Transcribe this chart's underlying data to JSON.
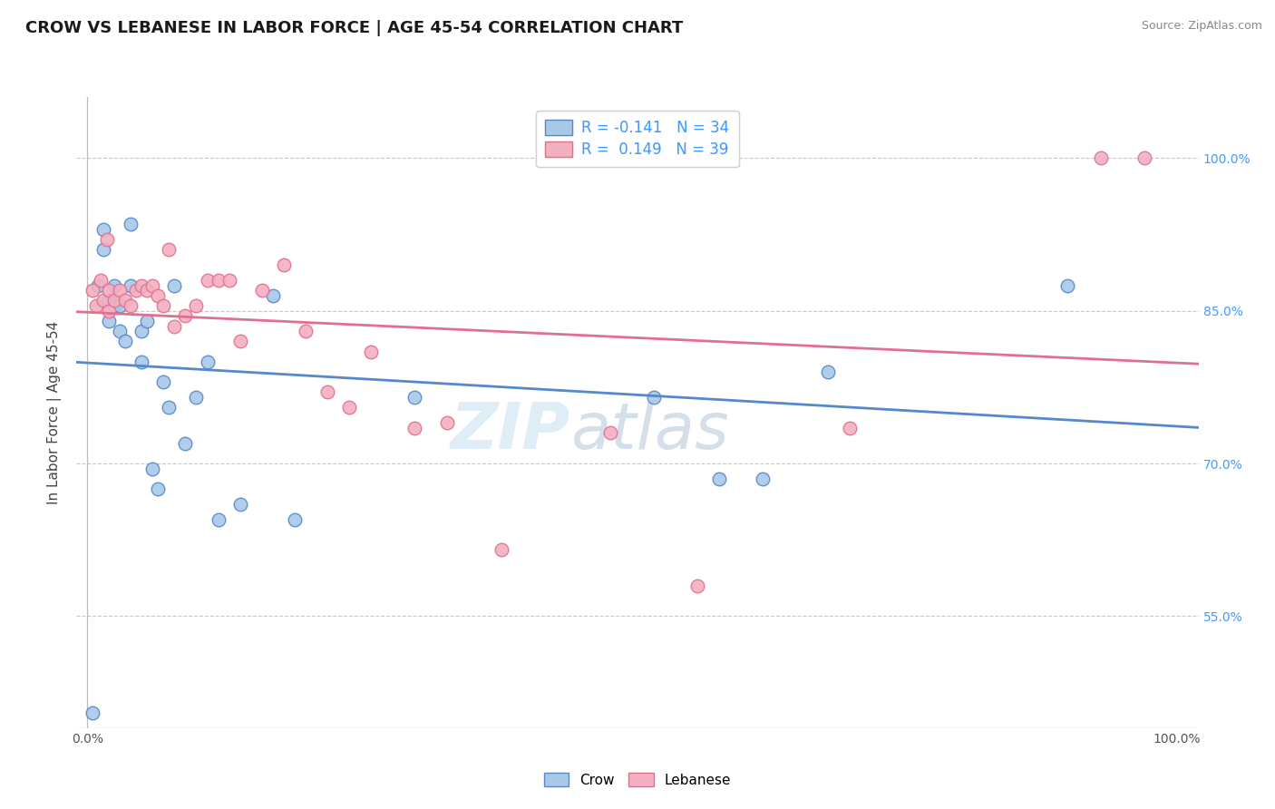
{
  "title": "CROW VS LEBANESE IN LABOR FORCE | AGE 45-54 CORRELATION CHART",
  "source": "Source: ZipAtlas.com",
  "ylabel": "In Labor Force | Age 45-54",
  "xlim": [
    -0.01,
    1.02
  ],
  "ylim": [
    0.44,
    1.06
  ],
  "xticks": [
    0.0,
    0.25,
    0.5,
    0.75,
    1.0
  ],
  "xtick_labels": [
    "0.0%",
    "",
    "",
    "",
    "100.0%"
  ],
  "ytick_labels": [
    "55.0%",
    "70.0%",
    "85.0%",
    "100.0%"
  ],
  "yticks": [
    0.55,
    0.7,
    0.85,
    1.0
  ],
  "crow_color": "#a8c8e8",
  "lebanese_color": "#f4afc0",
  "crow_line_color": "#5588cc",
  "lebanese_line_color": "#e07090",
  "legend_R_crow": "R = -0.141   N = 34",
  "legend_R_lebanese": "R =  0.149   N = 39",
  "crow_x": [
    0.005,
    0.01,
    0.015,
    0.015,
    0.02,
    0.02,
    0.025,
    0.025,
    0.03,
    0.03,
    0.035,
    0.04,
    0.04,
    0.05,
    0.05,
    0.055,
    0.06,
    0.065,
    0.07,
    0.075,
    0.08,
    0.09,
    0.1,
    0.11,
    0.12,
    0.14,
    0.17,
    0.19,
    0.3,
    0.52,
    0.58,
    0.62,
    0.68,
    0.9
  ],
  "crow_y": [
    0.455,
    0.875,
    0.91,
    0.93,
    0.86,
    0.84,
    0.855,
    0.875,
    0.83,
    0.855,
    0.82,
    0.875,
    0.935,
    0.8,
    0.83,
    0.84,
    0.695,
    0.675,
    0.78,
    0.755,
    0.875,
    0.72,
    0.765,
    0.8,
    0.645,
    0.66,
    0.865,
    0.645,
    0.765,
    0.765,
    0.685,
    0.685,
    0.79,
    0.875
  ],
  "lebanese_x": [
    0.005,
    0.008,
    0.012,
    0.015,
    0.018,
    0.02,
    0.02,
    0.025,
    0.03,
    0.035,
    0.04,
    0.045,
    0.05,
    0.055,
    0.06,
    0.065,
    0.07,
    0.075,
    0.08,
    0.09,
    0.1,
    0.11,
    0.12,
    0.13,
    0.14,
    0.16,
    0.18,
    0.2,
    0.22,
    0.24,
    0.26,
    0.3,
    0.33,
    0.38,
    0.48,
    0.56,
    0.7,
    0.93,
    0.97
  ],
  "lebanese_y": [
    0.87,
    0.855,
    0.88,
    0.86,
    0.92,
    0.85,
    0.87,
    0.86,
    0.87,
    0.86,
    0.855,
    0.87,
    0.875,
    0.87,
    0.875,
    0.865,
    0.855,
    0.91,
    0.835,
    0.845,
    0.855,
    0.88,
    0.88,
    0.88,
    0.82,
    0.87,
    0.895,
    0.83,
    0.77,
    0.755,
    0.81,
    0.735,
    0.74,
    0.615,
    0.73,
    0.58,
    0.735,
    1.0,
    1.0
  ],
  "watermark_zip": "ZIP",
  "watermark_atlas": "atlas",
  "background_color": "#ffffff",
  "grid_color": "#c8c8c8"
}
